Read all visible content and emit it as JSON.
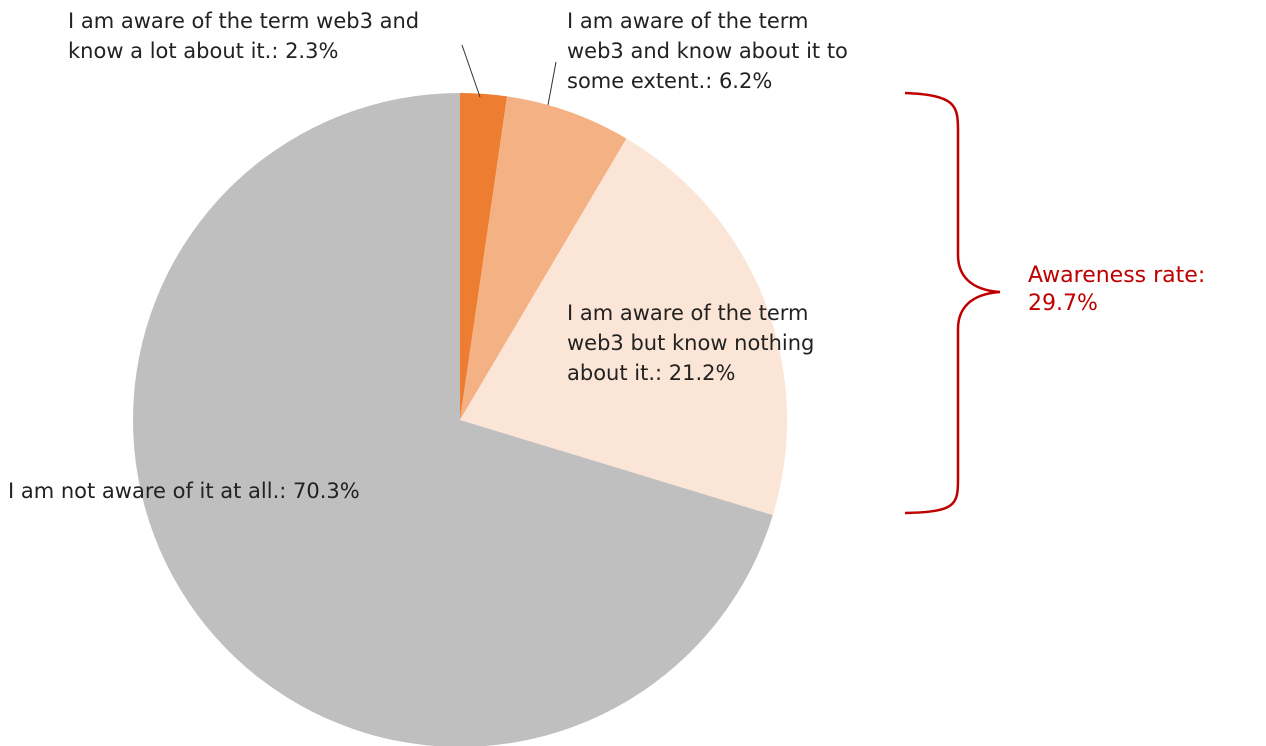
{
  "chart_data": {
    "type": "pie",
    "values": [
      2.3,
      6.2,
      21.2,
      70.3
    ],
    "value_labels": [
      "I am aware of the term web3 and know a lot about it.: 2.3%",
      "I am aware of the term web3 and know about it to some extent.: 6.2%",
      "I am aware of the term web3 but know nothing about it.: 21.2%",
      "I am not aware of it at all.: 70.3%"
    ],
    "colors": [
      "#ED7D31",
      "#F4B183",
      "#FBE5D6",
      "#BFBFBF"
    ],
    "annotation": [
      "Awareness rate:",
      "29.7%"
    ],
    "annotation_color": "#C00000"
  }
}
